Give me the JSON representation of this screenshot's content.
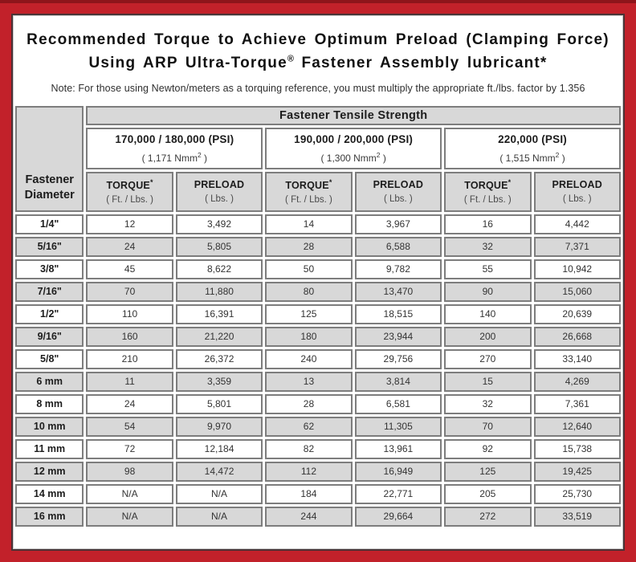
{
  "colors": {
    "frame_red": "#c2212a",
    "frame_top_dark": "#8e151b",
    "inner_border": "#4a3336",
    "cell_gray": "#d8d8d8",
    "grid_gray": "#7d7d7d"
  },
  "title": {
    "line1": "Recommended Torque to Achieve Optimum Preload (Clamping Force)",
    "line2_pre": "Using ARP Ultra-Torque",
    "line2_sup": "®",
    "line2_post": " Fastener Assembly lubricant*"
  },
  "note": "Note: For those using Newton/meters as a torquing reference, you must multiply the appropriate ft./lbs. factor by 1.356",
  "table": {
    "corner_header": {
      "line1": "Fastener",
      "line2": "Diameter"
    },
    "tensile_header": "Fastener Tensile Strength",
    "groups": [
      {
        "psi": "170,000 / 180,000 (PSI)",
        "nmm_pre": "( 1,171 Nmm",
        "nmm_sup": "2",
        "nmm_post": " )"
      },
      {
        "psi": "190,000 / 200,000 (PSI)",
        "nmm_pre": "( 1,300 Nmm",
        "nmm_sup": "2",
        "nmm_post": " )"
      },
      {
        "psi": "220,000 (PSI)",
        "nmm_pre": "( 1,515 Nmm",
        "nmm_sup": "2",
        "nmm_post": " )"
      }
    ],
    "sub": {
      "torque_label": "TORQUE",
      "torque_sup": "*",
      "torque_unit": "( Ft. / Lbs. )",
      "preload_label": "PRELOAD",
      "preload_unit": "( Lbs. )"
    },
    "rows": [
      {
        "diameter": "1/4\"",
        "values": [
          "12",
          "3,492",
          "14",
          "3,967",
          "16",
          "4,442"
        ]
      },
      {
        "diameter": "5/16\"",
        "values": [
          "24",
          "5,805",
          "28",
          "6,588",
          "32",
          "7,371"
        ]
      },
      {
        "diameter": "3/8\"",
        "values": [
          "45",
          "8,622",
          "50",
          "9,782",
          "55",
          "10,942"
        ]
      },
      {
        "diameter": "7/16\"",
        "values": [
          "70",
          "11,880",
          "80",
          "13,470",
          "90",
          "15,060"
        ]
      },
      {
        "diameter": "1/2\"",
        "values": [
          "110",
          "16,391",
          "125",
          "18,515",
          "140",
          "20,639"
        ]
      },
      {
        "diameter": "9/16\"",
        "values": [
          "160",
          "21,220",
          "180",
          "23,944",
          "200",
          "26,668"
        ]
      },
      {
        "diameter": "5/8\"",
        "values": [
          "210",
          "26,372",
          "240",
          "29,756",
          "270",
          "33,140"
        ]
      },
      {
        "diameter": "6 mm",
        "values": [
          "11",
          "3,359",
          "13",
          "3,814",
          "15",
          "4,269"
        ]
      },
      {
        "diameter": "8 mm",
        "values": [
          "24",
          "5,801",
          "28",
          "6,581",
          "32",
          "7,361"
        ]
      },
      {
        "diameter": "10 mm",
        "values": [
          "54",
          "9,970",
          "62",
          "11,305",
          "70",
          "12,640"
        ]
      },
      {
        "diameter": "11 mm",
        "values": [
          "72",
          "12,184",
          "82",
          "13,961",
          "92",
          "15,738"
        ]
      },
      {
        "diameter": "12 mm",
        "values": [
          "98",
          "14,472",
          "112",
          "16,949",
          "125",
          "19,425"
        ]
      },
      {
        "diameter": "14 mm",
        "values": [
          "N/A",
          "N/A",
          "184",
          "22,771",
          "205",
          "25,730"
        ]
      },
      {
        "diameter": "16 mm",
        "values": [
          "N/A",
          "N/A",
          "244",
          "29,664",
          "272",
          "33,519"
        ]
      }
    ]
  }
}
